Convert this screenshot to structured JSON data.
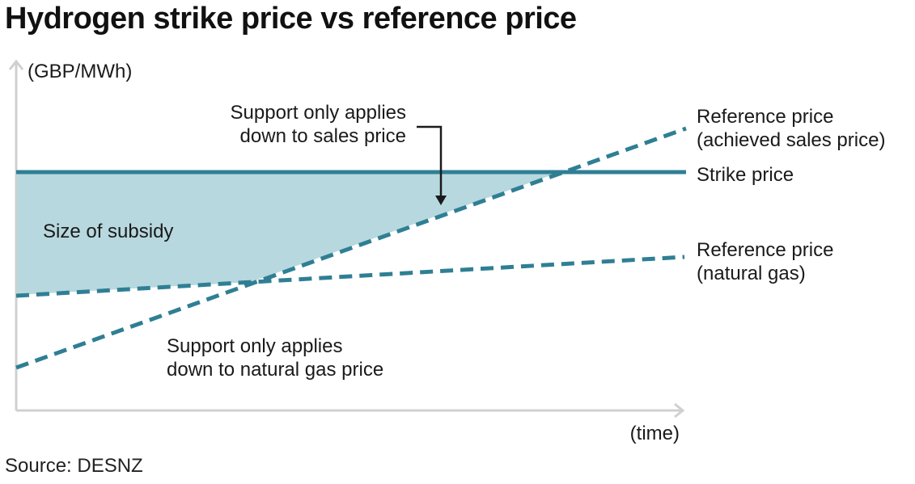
{
  "title": "Hydrogen strike price vs reference price",
  "source": "Source: DESNZ",
  "y_axis_label": "(GBP/MWh)",
  "x_axis_label": "(time)",
  "colors": {
    "line": "#2f7f94",
    "shade": "#b7d8de",
    "axis": "#d0d0d0",
    "arrow": "#1a1a1a"
  },
  "annotations": {
    "sales_support": [
      "Support only applies",
      "down to sales price"
    ],
    "subsidy": "Size of subsidy",
    "gas_support": [
      "Support only applies",
      "down to natural gas price"
    ]
  },
  "series_labels": {
    "reference_sales": [
      "Reference price",
      "(achieved sales price)"
    ],
    "strike": "Strike price",
    "reference_gas": [
      "Reference price",
      "(natural gas)"
    ]
  }
}
